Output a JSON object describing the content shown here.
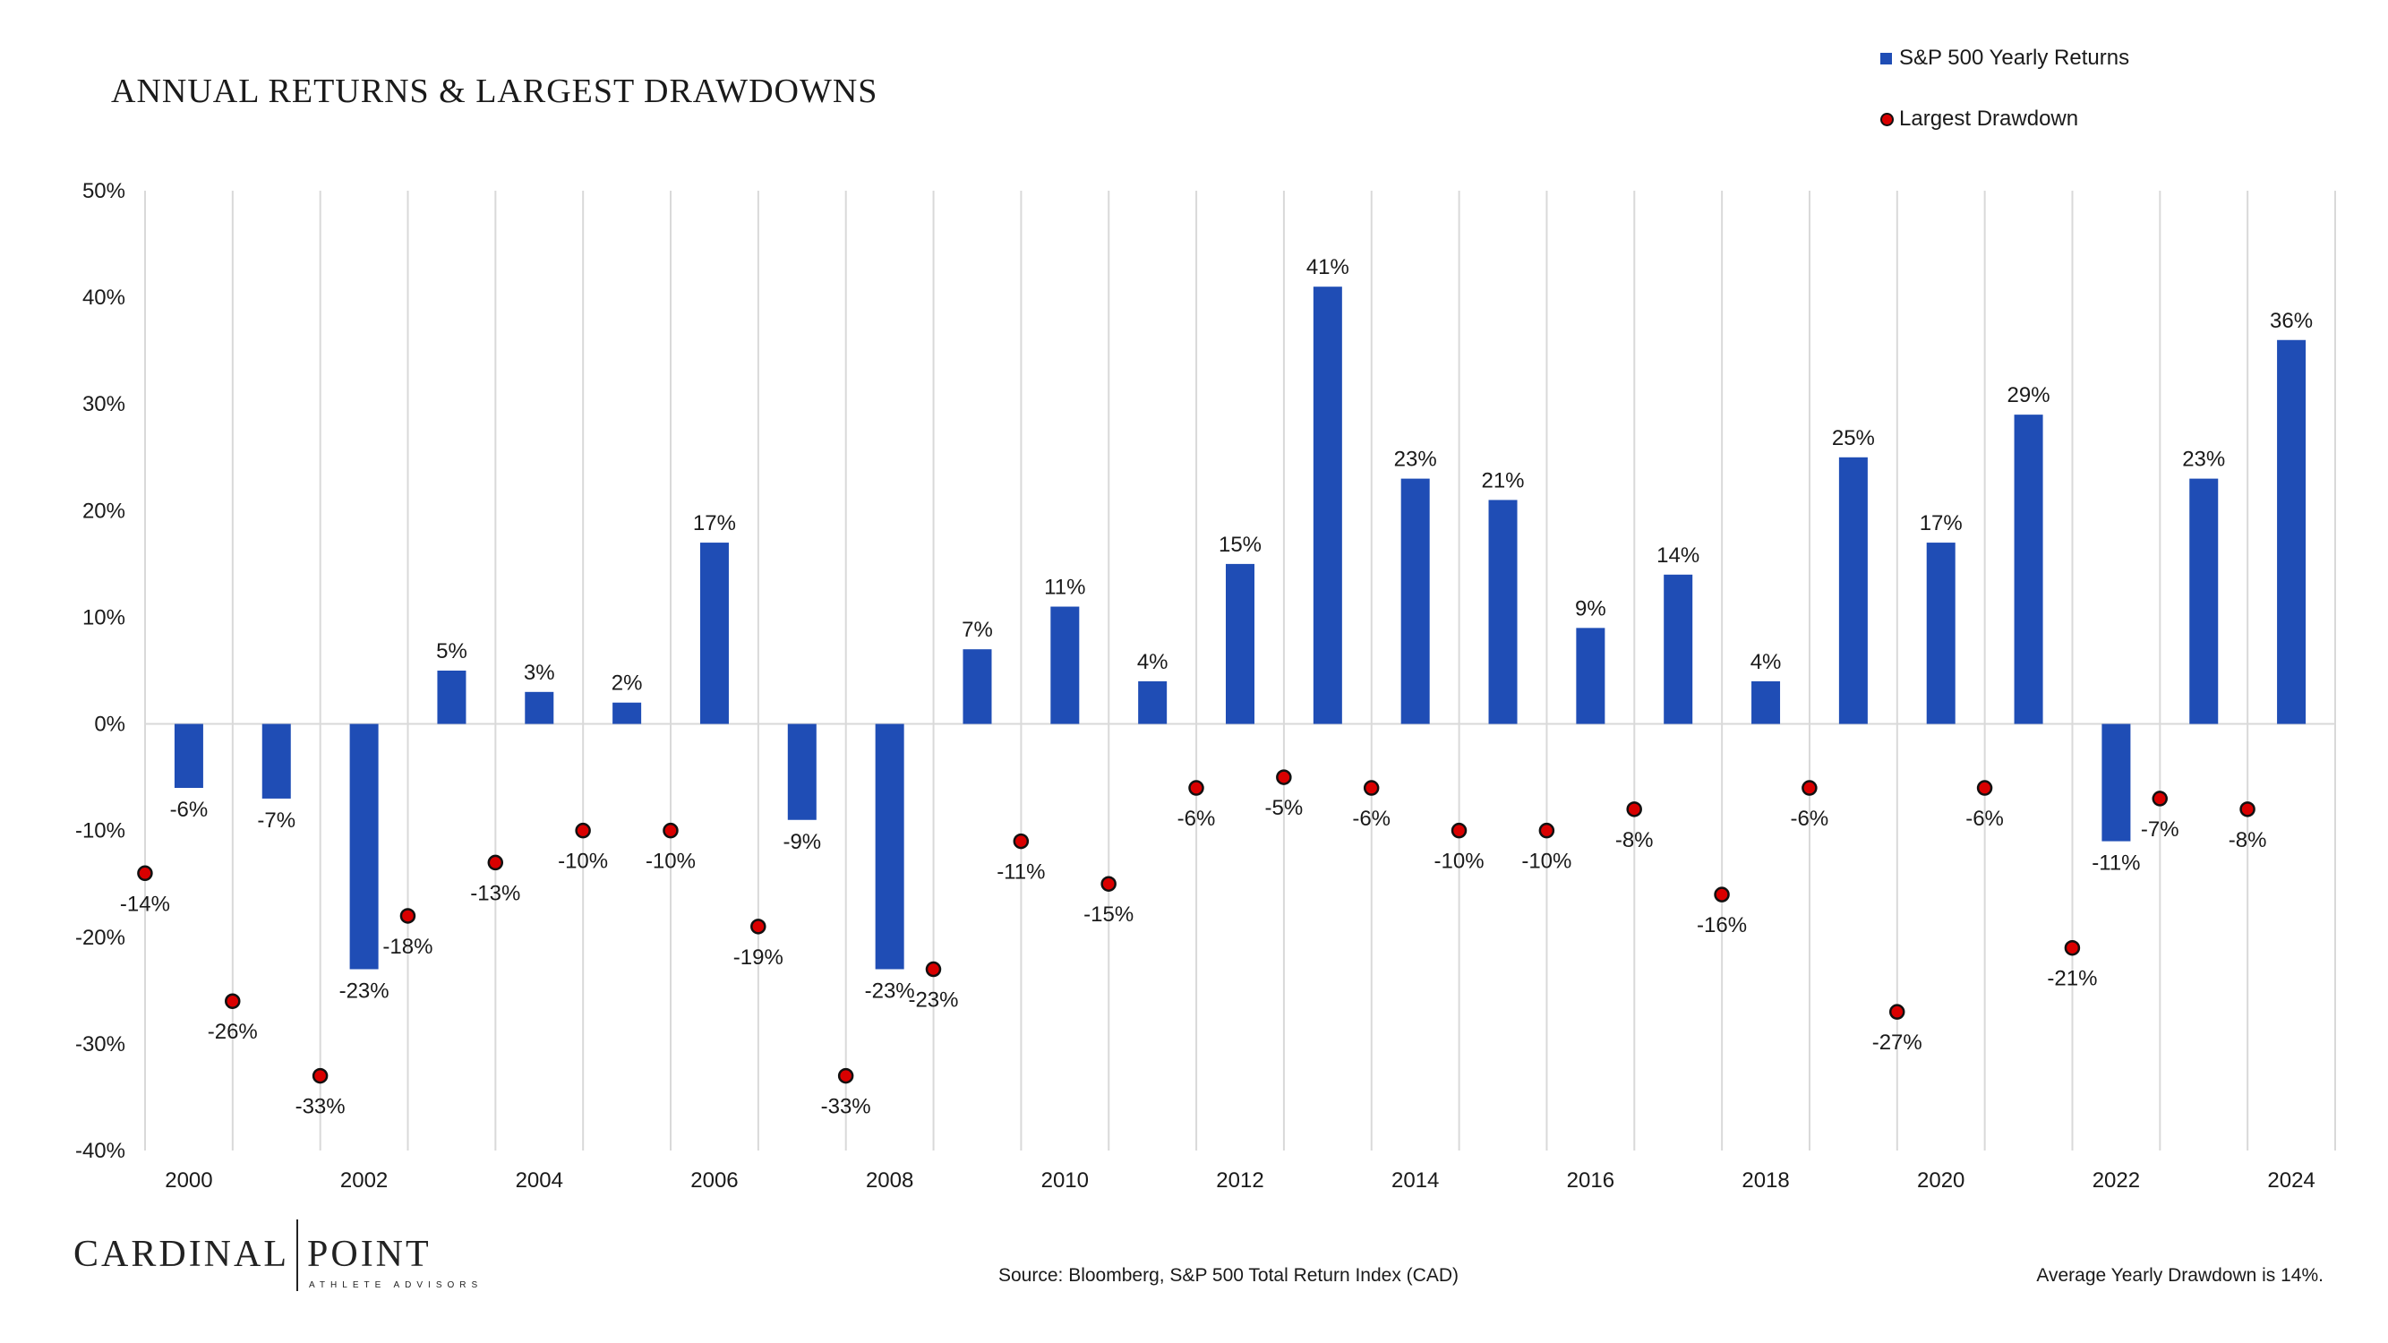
{
  "colors": {
    "bar": "#1f4db5",
    "dot_fill": "#d90000",
    "dot_stroke": "#111111",
    "grid": "#d9d9d9",
    "text": "#1a1a1a"
  },
  "chart_data": {
    "type": "bar",
    "title": "ANNUAL RETURNS & LARGEST DRAWDOWNS",
    "categories": [
      "2000",
      "2001",
      "2002",
      "2003",
      "2004",
      "2005",
      "2006",
      "2007",
      "2008",
      "2009",
      "2010",
      "2011",
      "2012",
      "2013",
      "2014",
      "2015",
      "2016",
      "2017",
      "2018",
      "2019",
      "2020",
      "2021",
      "2022",
      "2023",
      "2024"
    ],
    "x_tick_labels": [
      "2000",
      "2002",
      "2004",
      "2006",
      "2008",
      "2010",
      "2012",
      "2014",
      "2016",
      "2018",
      "2020",
      "2022",
      "2024"
    ],
    "ylim": [
      -40,
      50
    ],
    "y_tick_labels": [
      "50%",
      "40%",
      "30%",
      "20%",
      "10%",
      "0%",
      "-10%",
      "-20%",
      "-30%",
      "-40%"
    ],
    "series": [
      {
        "name": "S&P 500 Yearly Returns",
        "type": "bar",
        "values": [
          -6,
          -7,
          -23,
          5,
          3,
          2,
          17,
          -9,
          -23,
          7,
          11,
          4,
          15,
          41,
          23,
          21,
          9,
          14,
          4,
          25,
          17,
          29,
          -11,
          23,
          36
        ],
        "labels": [
          "-6%",
          "-7%",
          "-23%",
          "5%",
          "3%",
          "2%",
          "17%",
          "-9%",
          "-23%",
          "7%",
          "11%",
          "4%",
          "15%",
          "41%",
          "23%",
          "21%",
          "9%",
          "14%",
          "4%",
          "25%",
          "17%",
          "29%",
          "-11%",
          "23%",
          "36%"
        ]
      },
      {
        "name": "Largest Drawdown",
        "type": "scatter",
        "values": [
          -14,
          -26,
          -33,
          -18,
          -13,
          -10,
          -10,
          -19,
          -33,
          -23,
          -11,
          -15,
          -6,
          -5,
          -6,
          -10,
          -10,
          -8,
          -16,
          -6,
          -27,
          -6,
          -21,
          -7,
          -8
        ],
        "labels": [
          "-14%",
          "-26%",
          "-33%",
          "-18%",
          "-13%",
          "-10%",
          "-10%",
          "-19%",
          "-33%",
          "-23%",
          "-11%",
          "-15%",
          "-6%",
          "-5%",
          "-6%",
          "-10%",
          "-10%",
          "-8%",
          "-16%",
          "-6%",
          "-27%",
          "-6%",
          "-21%",
          "-7%",
          "-8%"
        ]
      }
    ],
    "legend_position": "top-right",
    "grid": "vertical"
  },
  "brand": {
    "name_left": "CARDINAL",
    "name_right": "POINT",
    "subtitle": "ATHLETE ADVISORS"
  },
  "source_text": "Source: Bloomberg, S&P 500 Total Return Index (CAD)",
  "footnote_text": "Average Yearly Drawdown is 14%."
}
